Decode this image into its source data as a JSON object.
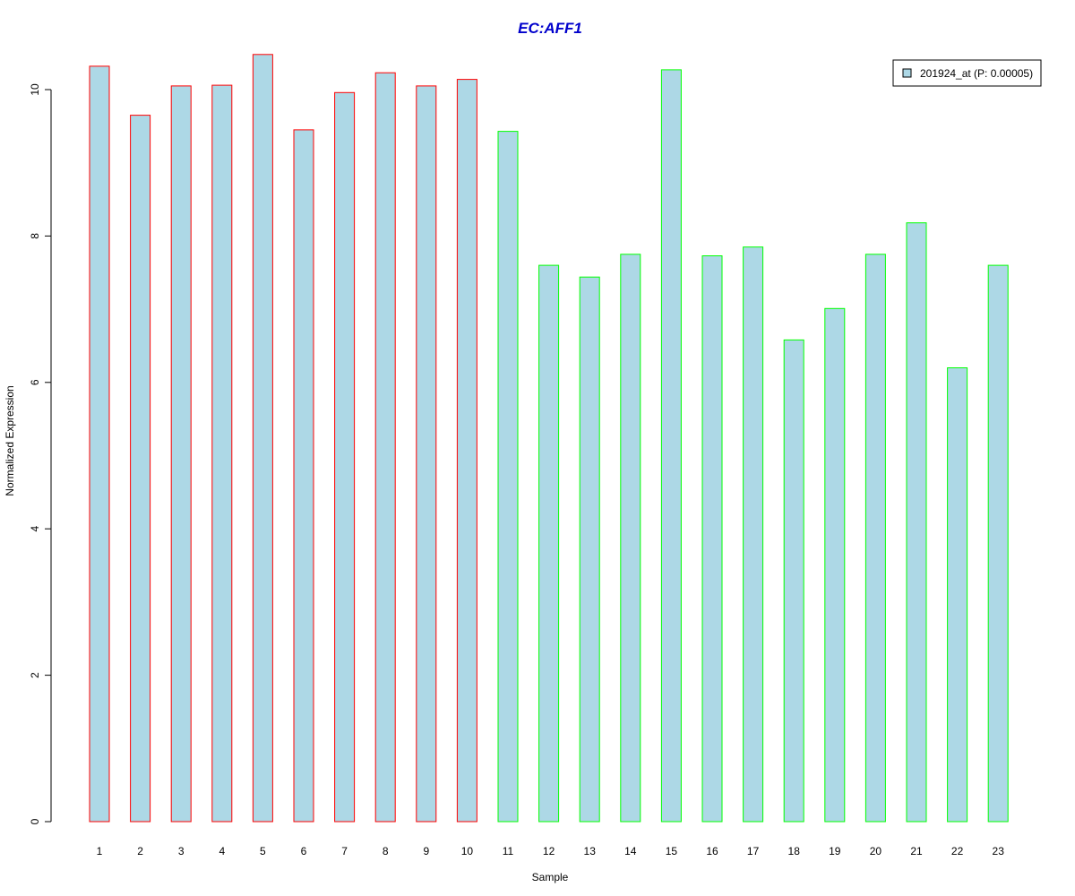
{
  "chart_data": {
    "type": "bar",
    "title": "EC:AFF1",
    "xlabel": "Sample",
    "ylabel": "Normalized Expression",
    "ylim": [
      0,
      10.5
    ],
    "yticks": [
      0,
      2,
      4,
      6,
      8,
      10
    ],
    "grid": false,
    "legend_position": "top-right",
    "legend": [
      "201924_at (P: 0.00005)"
    ],
    "categories": [
      "1",
      "2",
      "3",
      "4",
      "5",
      "6",
      "7",
      "8",
      "9",
      "10",
      "11",
      "12",
      "13",
      "14",
      "15",
      "16",
      "17",
      "18",
      "19",
      "20",
      "21",
      "22",
      "23"
    ],
    "series": [
      {
        "name": "201924_at (P: 0.00005)",
        "values": [
          10.32,
          9.65,
          10.05,
          10.06,
          10.48,
          9.45,
          9.96,
          10.23,
          10.05,
          10.14,
          9.43,
          7.6,
          7.44,
          7.75,
          10.27,
          7.73,
          7.85,
          6.58,
          7.01,
          7.75,
          8.18,
          6.2,
          7.6
        ],
        "fill": "#add8e6",
        "border_colors": [
          "#ff0000",
          "#ff0000",
          "#ff0000",
          "#ff0000",
          "#ff0000",
          "#ff0000",
          "#ff0000",
          "#ff0000",
          "#ff0000",
          "#ff0000",
          "#00ff00",
          "#00ff00",
          "#00ff00",
          "#00ff00",
          "#00ff00",
          "#00ff00",
          "#00ff00",
          "#00ff00",
          "#00ff00",
          "#00ff00",
          "#00ff00",
          "#00ff00",
          "#00ff00"
        ]
      }
    ],
    "title_color": "#0000cc"
  }
}
